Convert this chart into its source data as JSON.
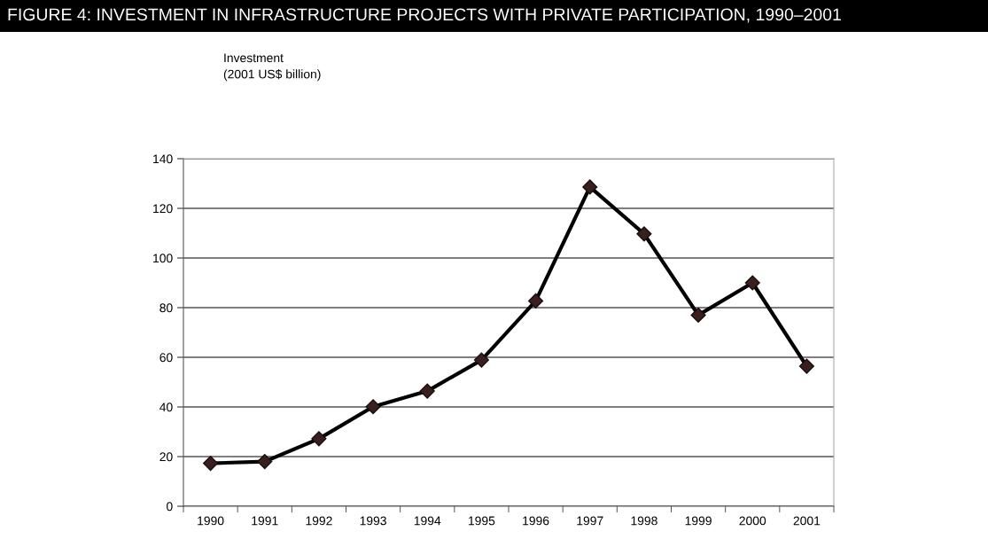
{
  "chart_data": {
    "type": "line",
    "title": "FIGURE 4: INVESTMENT IN INFRASTRUCTURE PROJECTS WITH PRIVATE PARTICIPATION, 1990–2001",
    "annotations": [
      "Investment\n(2001 US$ billion)"
    ],
    "categories": [
      "1990",
      "1991",
      "1992",
      "1993",
      "1994",
      "1995",
      "1996",
      "1997",
      "1998",
      "1999",
      "2000",
      "2001"
    ],
    "series": [
      {
        "color": "#000000",
        "values": [
          17.3,
          18.0,
          27.2,
          40.1,
          46.4,
          58.9,
          82.7,
          128.6,
          109.7,
          77.0,
          90.0,
          56.4
        ]
      }
    ],
    "ylim": [
      0,
      140
    ],
    "yticks": [
      0,
      20,
      40,
      60,
      80,
      100,
      120,
      140
    ],
    "grid": "y",
    "marker": "diamond",
    "line_style": "solid",
    "legend": false
  }
}
